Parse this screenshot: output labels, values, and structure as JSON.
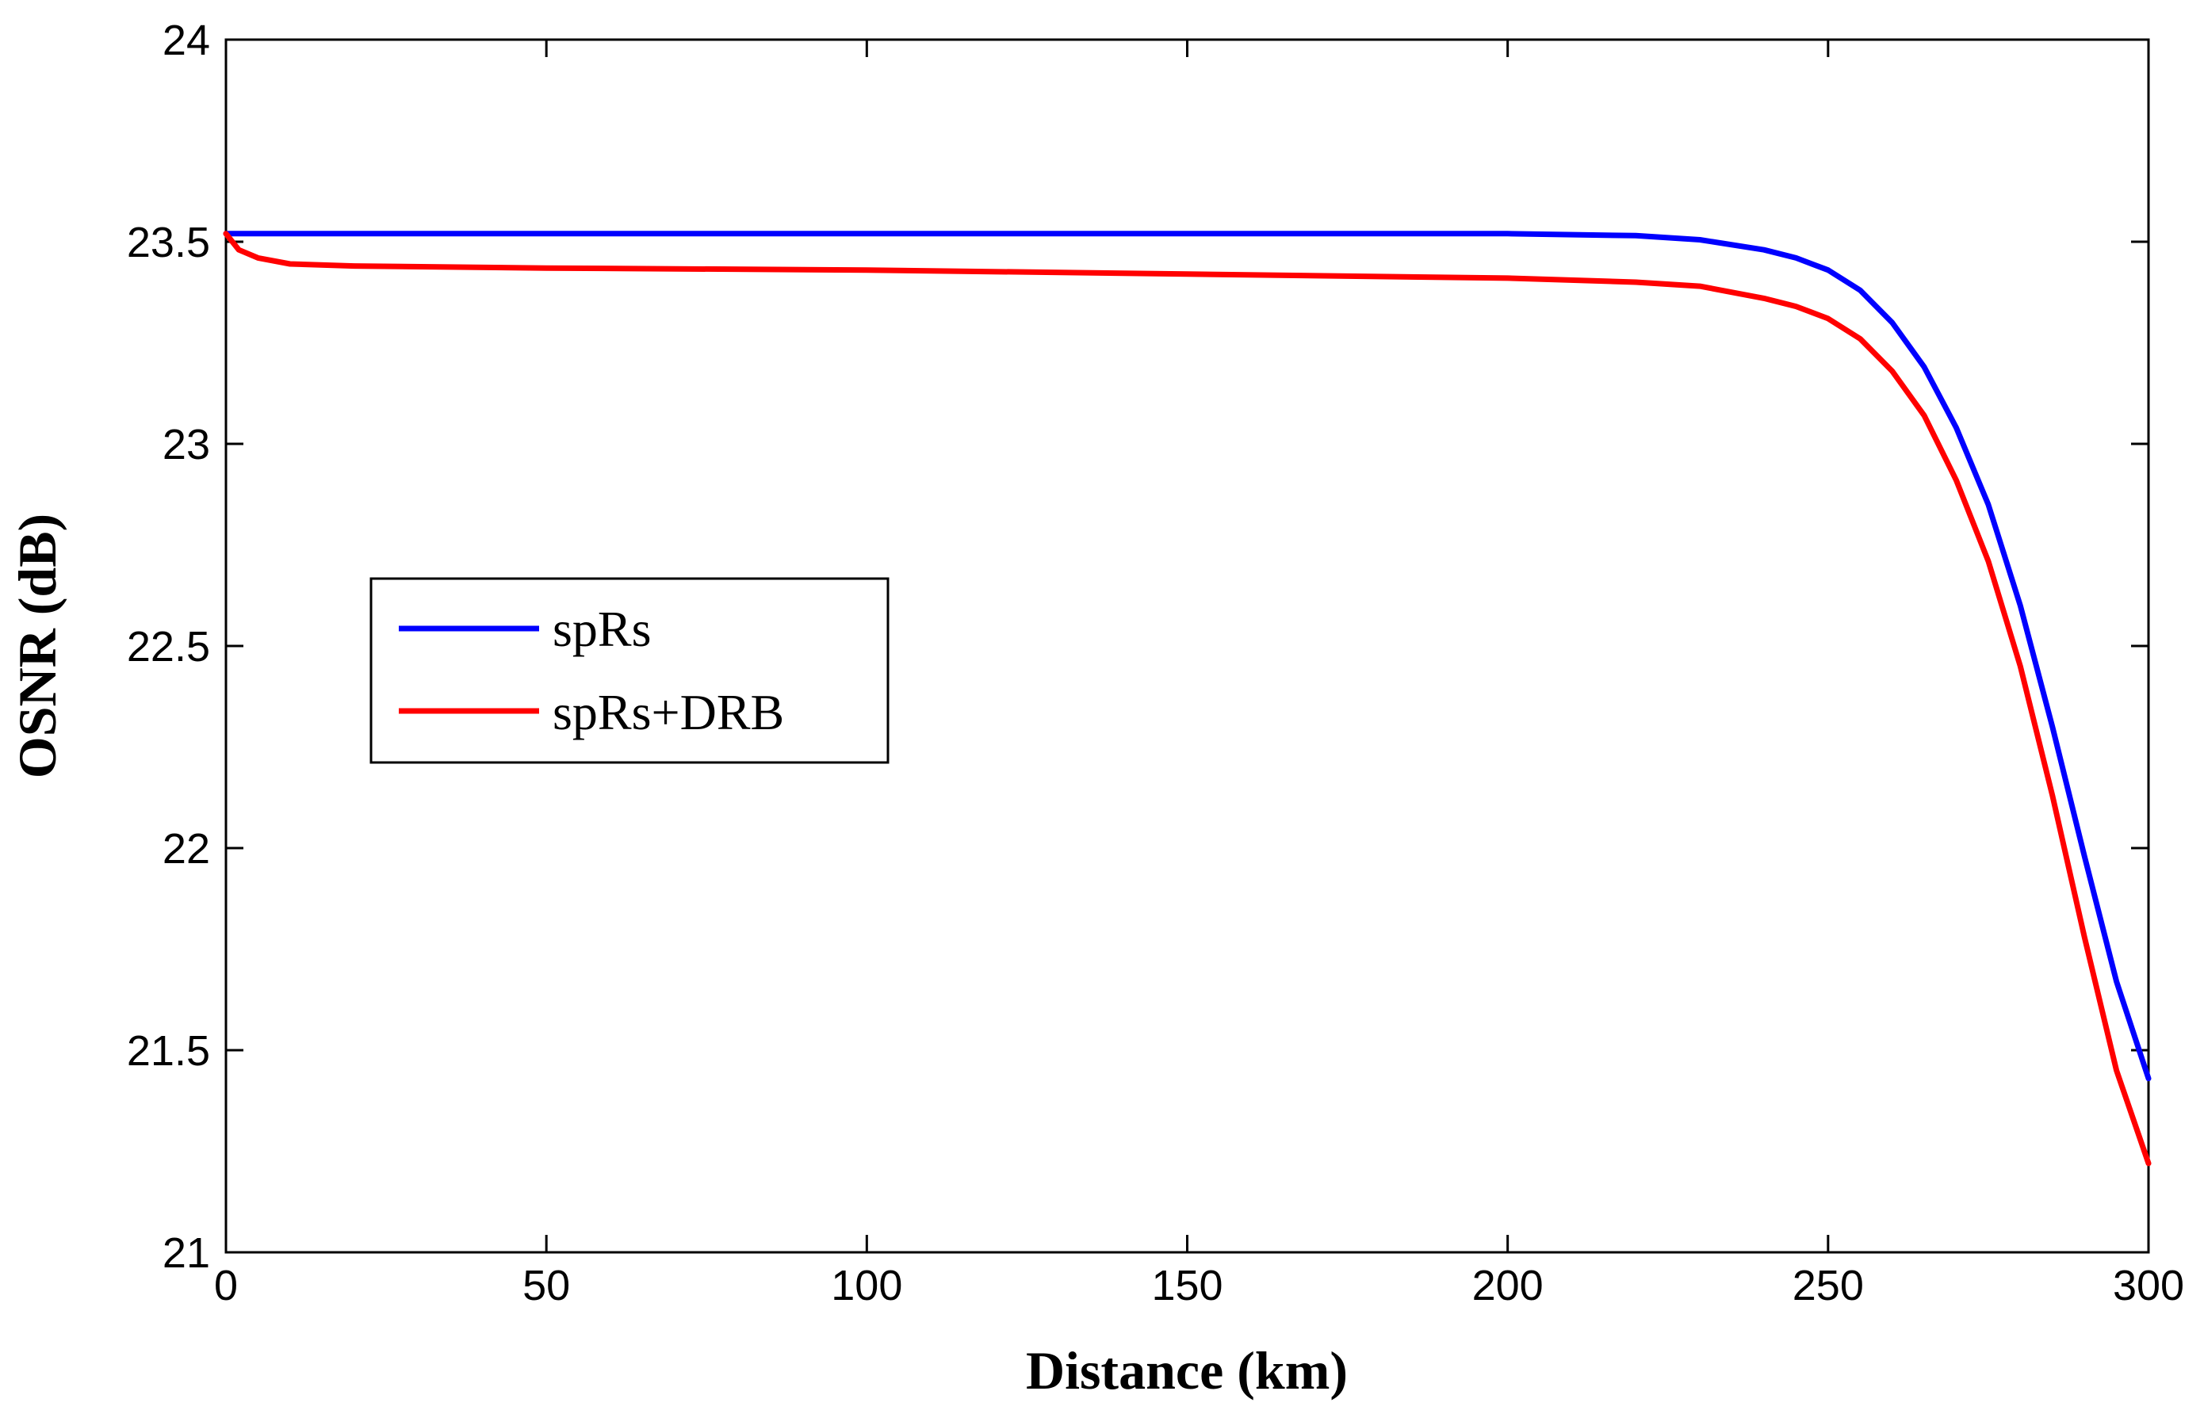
{
  "chart_data": {
    "type": "line",
    "title": "",
    "xlabel": "Distance (km)",
    "ylabel": "OSNR (dB)",
    "xlim": [
      0,
      300
    ],
    "ylim": [
      21,
      24
    ],
    "xticks": [
      "0",
      "50",
      "100",
      "150",
      "200",
      "250",
      "300"
    ],
    "yticks": [
      "21",
      "21.5",
      "22",
      "22.5",
      "23",
      "23.5",
      "24"
    ],
    "grid": false,
    "legend_position": "center-left",
    "series": [
      {
        "name": "spRs",
        "color": "#0000ff",
        "x": [
          0,
          50,
          100,
          150,
          200,
          220,
          230,
          240,
          245,
          250,
          255,
          260,
          265,
          270,
          275,
          280,
          285,
          290,
          295,
          300
        ],
        "y": [
          23.52,
          23.52,
          23.52,
          23.52,
          23.52,
          23.515,
          23.505,
          23.48,
          23.46,
          23.43,
          23.38,
          23.3,
          23.19,
          23.04,
          22.85,
          22.6,
          22.3,
          21.98,
          21.67,
          21.43
        ]
      },
      {
        "name": "spRs+DRB",
        "color": "#ff0000",
        "x": [
          0,
          2,
          5,
          10,
          20,
          50,
          100,
          150,
          200,
          220,
          230,
          240,
          245,
          250,
          255,
          260,
          265,
          270,
          275,
          280,
          285,
          290,
          295,
          300
        ],
        "y": [
          23.52,
          23.48,
          23.46,
          23.445,
          23.44,
          23.435,
          23.43,
          23.42,
          23.41,
          23.4,
          23.39,
          23.36,
          23.34,
          23.31,
          23.26,
          23.18,
          23.07,
          22.91,
          22.71,
          22.45,
          22.13,
          21.78,
          21.45,
          21.22
        ]
      }
    ]
  }
}
